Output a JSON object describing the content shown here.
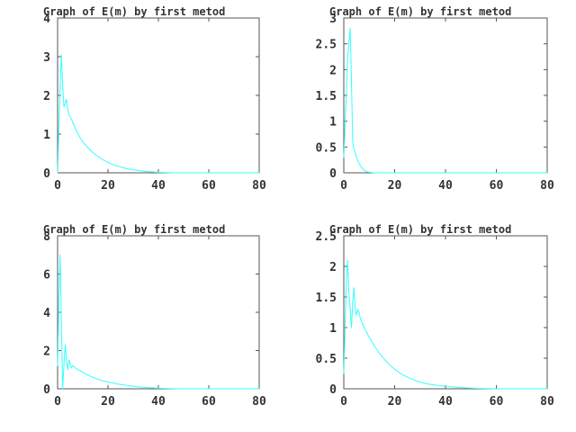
{
  "chart_data": [
    {
      "type": "line",
      "title": "Graph of E(m) by first metod",
      "xlim": [
        0,
        80
      ],
      "ylim": [
        0,
        4
      ],
      "xticks": [
        0,
        20,
        40,
        60,
        80
      ],
      "yticks": [
        0,
        1,
        2,
        3,
        4
      ],
      "color": "#33ffff",
      "series": [
        {
          "x": [
            0,
            0.5,
            1,
            1.5,
            2,
            2.5,
            3,
            3.5,
            4,
            4.5,
            5,
            5.5,
            6,
            7,
            8,
            9,
            10,
            12,
            14,
            16,
            18,
            20,
            22,
            24,
            26,
            28,
            30,
            32,
            34,
            36,
            38,
            40,
            42,
            44,
            46,
            48,
            50,
            55,
            60,
            65,
            70,
            75,
            80
          ],
          "y": [
            0,
            1.2,
            2.2,
            3.05,
            2.3,
            1.7,
            1.8,
            1.9,
            1.65,
            1.5,
            1.45,
            1.38,
            1.3,
            1.15,
            1.02,
            0.9,
            0.8,
            0.65,
            0.52,
            0.42,
            0.34,
            0.27,
            0.21,
            0.17,
            0.13,
            0.1,
            0.08,
            0.06,
            0.045,
            0.03,
            0.02,
            0.012,
            0.006,
            0.003,
            0.001,
            0,
            0,
            0,
            0,
            0,
            0,
            0,
            0
          ]
        }
      ]
    },
    {
      "type": "line",
      "title": "Graph of E(m) by first metod",
      "xlim": [
        0,
        80
      ],
      "ylim": [
        0,
        3
      ],
      "xticks": [
        0,
        20,
        40,
        60,
        80
      ],
      "yticks": [
        0,
        0.5,
        1,
        1.5,
        2,
        2.5,
        3
      ],
      "color": "#33ffff",
      "series": [
        {
          "x": [
            0,
            0.5,
            1,
            1.5,
            2,
            2.5,
            3,
            3.5,
            4,
            4.5,
            5,
            6,
            7,
            8,
            9,
            10,
            12,
            15,
            20,
            30,
            40,
            50,
            60,
            70,
            80
          ],
          "y": [
            0.3,
            0.9,
            1.5,
            2.2,
            2.5,
            2.8,
            1.8,
            0.6,
            0.45,
            0.4,
            0.3,
            0.18,
            0.1,
            0.05,
            0.02,
            0.01,
            0,
            0,
            0,
            0,
            0,
            0,
            0,
            0,
            0
          ]
        }
      ]
    },
    {
      "type": "line",
      "title": "Graph of E(m) by first metod",
      "xlim": [
        0,
        80
      ],
      "ylim": [
        0,
        8
      ],
      "xticks": [
        0,
        20,
        40,
        60,
        80
      ],
      "yticks": [
        0,
        2,
        4,
        6,
        8
      ],
      "color": "#33ffff",
      "series": [
        {
          "x": [
            0,
            0.5,
            1,
            1.5,
            2,
            2.5,
            3,
            3.5,
            4,
            4.5,
            5,
            5.5,
            6,
            7,
            8,
            9,
            10,
            12,
            14,
            16,
            18,
            20,
            24,
            28,
            32,
            36,
            40,
            44,
            48,
            55,
            60,
            70,
            80
          ],
          "y": [
            1.2,
            4.5,
            7.0,
            3.5,
            0,
            1.2,
            2.3,
            1.5,
            1.0,
            1.5,
            1.3,
            1.1,
            1.2,
            1.1,
            1.0,
            0.95,
            0.85,
            0.72,
            0.6,
            0.5,
            0.42,
            0.36,
            0.25,
            0.17,
            0.1,
            0.06,
            0.03,
            0.01,
            0,
            0,
            0,
            0,
            0
          ]
        }
      ]
    },
    {
      "type": "line",
      "title": "Graph of E(m) by first metod",
      "xlim": [
        0,
        80
      ],
      "ylim": [
        0,
        2.5
      ],
      "xticks": [
        0,
        20,
        40,
        60,
        80
      ],
      "yticks": [
        0,
        0.5,
        1,
        1.5,
        2,
        2.5
      ],
      "color": "#33ffff",
      "series": [
        {
          "x": [
            0,
            0.5,
            1,
            1.5,
            2,
            2.5,
            3,
            3.5,
            4,
            4.5,
            5,
            5.5,
            6,
            6.5,
            7,
            8,
            9,
            10,
            12,
            14,
            16,
            18,
            20,
            22,
            24,
            26,
            28,
            30,
            33,
            36,
            40,
            44,
            48,
            52,
            56,
            60,
            65,
            70,
            80
          ],
          "y": [
            0.25,
            1.0,
            1.7,
            2.1,
            1.6,
            1.3,
            1.0,
            1.4,
            1.65,
            1.3,
            1.2,
            1.3,
            1.25,
            1.15,
            1.1,
            1.0,
            0.92,
            0.84,
            0.7,
            0.58,
            0.48,
            0.39,
            0.32,
            0.26,
            0.21,
            0.17,
            0.14,
            0.11,
            0.08,
            0.06,
            0.04,
            0.025,
            0.015,
            0.008,
            0.004,
            0,
            0,
            0,
            0
          ]
        }
      ]
    }
  ]
}
